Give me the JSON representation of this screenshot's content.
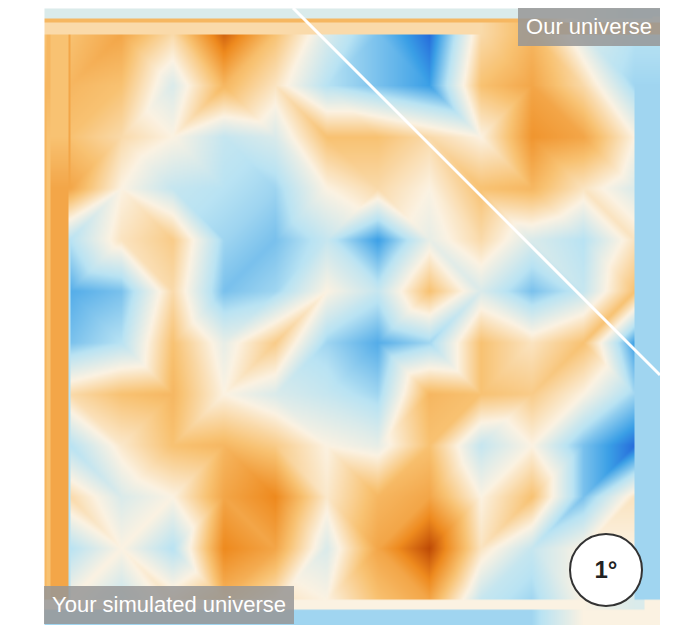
{
  "chart_data": {
    "type": "heatmap",
    "cells": [
      [
        1,
        1.5,
        0.5,
        2.5,
        1,
        -0.5,
        -1.5,
        -2.5,
        0.5,
        1.2,
        -0.5,
        -1
      ],
      [
        1.2,
        1,
        -0.5,
        1.2,
        0.3,
        -1,
        -1.5,
        -2,
        1,
        1.5,
        0.5,
        -1.2
      ],
      [
        1,
        0.5,
        0,
        -0.8,
        -0.5,
        1,
        1,
        0.5,
        0,
        1.8,
        1.5,
        0
      ],
      [
        1.5,
        0,
        -0.8,
        -1,
        -1.2,
        0,
        0.5,
        0,
        1,
        1.2,
        0.3,
        -0.5
      ],
      [
        -1,
        0.3,
        0.8,
        -1.2,
        -1.5,
        -0.8,
        -2,
        -0.3,
        0.5,
        -0.5,
        -1,
        0.3
      ],
      [
        -1.8,
        -1.5,
        0.5,
        -1.5,
        -1.2,
        0,
        -0.8,
        1,
        -0.5,
        -1.5,
        -0.8,
        1
      ],
      [
        -1.5,
        -1,
        1,
        -0.3,
        0.8,
        -1.2,
        -1.8,
        -1.2,
        1,
        0.3,
        1,
        -2
      ],
      [
        0.5,
        1,
        1.2,
        0,
        -0.5,
        -0.8,
        -1.2,
        1.2,
        1,
        0.8,
        0,
        -1.2
      ],
      [
        -1,
        0.2,
        1,
        1.2,
        0.8,
        0,
        -0.3,
        1,
        -0.8,
        0,
        -1.5,
        -2.5
      ],
      [
        0.5,
        -0.5,
        0,
        1.5,
        2,
        0.2,
        1.2,
        1.5,
        0,
        1,
        -1.5,
        0.3
      ],
      [
        -1,
        0,
        -1,
        2,
        1.5,
        -0.5,
        1.5,
        2.8,
        0.3,
        -0.8,
        0,
        0
      ],
      [
        0,
        -0.8,
        0.3,
        1.2,
        0.3,
        0,
        1,
        1.5,
        -0.8,
        -1.2,
        0,
        -0.5
      ]
    ],
    "xlim": [
      0,
      12
    ],
    "ylim": [
      0,
      12
    ],
    "zlim": [
      -3,
      3
    ],
    "tick_labels": false,
    "annotations": [
      "Our universe",
      "Your simulated universe",
      "1°"
    ]
  }
}
